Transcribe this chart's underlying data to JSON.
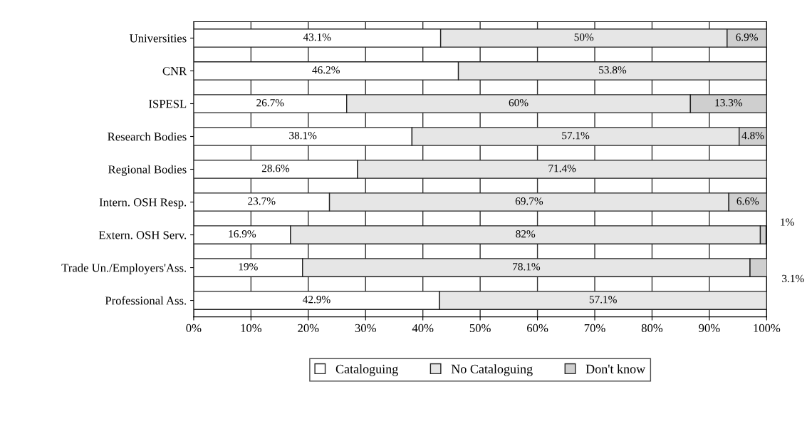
{
  "chart_data": {
    "type": "bar",
    "orientation": "horizontal",
    "stacked": true,
    "categories": [
      "Universities",
      "CNR",
      "ISPESL",
      "Research Bodies",
      "Regional Bodies",
      "Intern. OSH Resp.",
      "Extern. OSH Serv.",
      "Trade Un./Employers'Ass.",
      "Professional Ass."
    ],
    "series": [
      {
        "name": "Cataloguing",
        "color": "#ffffff",
        "values": [
          43.1,
          46.2,
          26.7,
          38.1,
          28.6,
          23.7,
          16.9,
          19,
          42.9
        ],
        "value_labels": [
          "43.1%",
          "46.2%",
          "26.7%",
          "38.1%",
          "28.6%",
          "23.7%",
          "16.9%",
          "19%",
          "42.9%"
        ]
      },
      {
        "name": "No Cataloguing",
        "color": "#e6e6e6",
        "values": [
          50,
          53.8,
          60,
          57.1,
          71.4,
          69.7,
          82,
          78.1,
          57.1
        ],
        "value_labels": [
          "50%",
          "53.8%",
          "60%",
          "57.1%",
          "71.4%",
          "69.7%",
          "82%",
          "78.1%",
          "57.1%"
        ]
      },
      {
        "name": "Don't know",
        "color": "#cfcfcf",
        "values": [
          6.9,
          null,
          13.3,
          4.8,
          null,
          6.6,
          1,
          3.1,
          null
        ],
        "value_labels": [
          "6.9%",
          null,
          "13.3%",
          "4.8%",
          null,
          "6.6%",
          "1%",
          "3.1%",
          null
        ]
      }
    ],
    "xlim": [
      0,
      100
    ],
    "xticks": [
      {
        "value": 0,
        "label": "0%"
      },
      {
        "value": 10,
        "label": "10%"
      },
      {
        "value": 20,
        "label": "20%"
      },
      {
        "value": 30,
        "label": "30%"
      },
      {
        "value": 40,
        "label": "40%"
      },
      {
        "value": 50,
        "label": "50%"
      },
      {
        "value": 60,
        "label": "60%"
      },
      {
        "value": 70,
        "label": "70%"
      },
      {
        "value": 80,
        "label": "80%"
      },
      {
        "value": 90,
        "label": "90%"
      },
      {
        "value": 100,
        "label": "100%"
      }
    ],
    "grid": "x",
    "legend": "bottom"
  }
}
